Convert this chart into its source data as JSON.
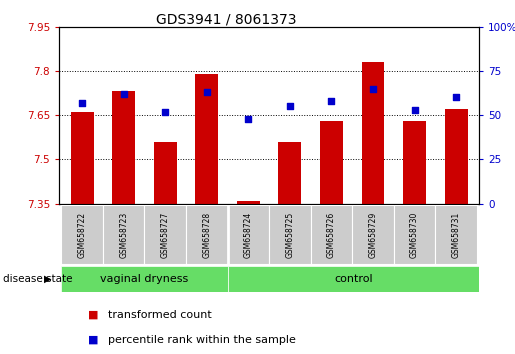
{
  "title": "GDS3941 / 8061373",
  "samples": [
    "GSM658722",
    "GSM658723",
    "GSM658727",
    "GSM658728",
    "GSM658724",
    "GSM658725",
    "GSM658726",
    "GSM658729",
    "GSM658730",
    "GSM658731"
  ],
  "red_values": [
    7.66,
    7.73,
    7.56,
    7.79,
    7.36,
    7.56,
    7.63,
    7.83,
    7.63,
    7.67
  ],
  "blue_values": [
    57,
    62,
    52,
    63,
    48,
    55,
    58,
    65,
    53,
    60
  ],
  "ylim_left": [
    7.35,
    7.95
  ],
  "ylim_right": [
    0,
    100
  ],
  "yticks_left": [
    7.35,
    7.5,
    7.65,
    7.8,
    7.95
  ],
  "yticks_right": [
    0,
    25,
    50,
    75,
    100
  ],
  "ytick_labels_left": [
    "7.35",
    "7.5",
    "7.65",
    "7.8",
    "7.95"
  ],
  "ytick_labels_right": [
    "0",
    "25",
    "50",
    "75",
    "100%"
  ],
  "group_divider": 4,
  "group_labels": [
    "vaginal dryness",
    "control"
  ],
  "bar_color": "#CC0000",
  "dot_color": "#0000CC",
  "bar_width": 0.55,
  "baseline": 7.35,
  "plot_bg_color": "#ffffff",
  "gray_label_color": "#cccccc",
  "green_color": "#66DD66",
  "left_tick_color": "#CC0000",
  "right_tick_color": "#0000CC",
  "legend_items": [
    "transformed count",
    "percentile rank within the sample"
  ],
  "disease_state_label": "disease state",
  "dotted_lines": [
    7.5,
    7.65,
    7.8
  ],
  "title_fontsize": 10,
  "tick_fontsize": 7.5,
  "sample_fontsize": 5.5,
  "group_fontsize": 8,
  "legend_fontsize": 8
}
